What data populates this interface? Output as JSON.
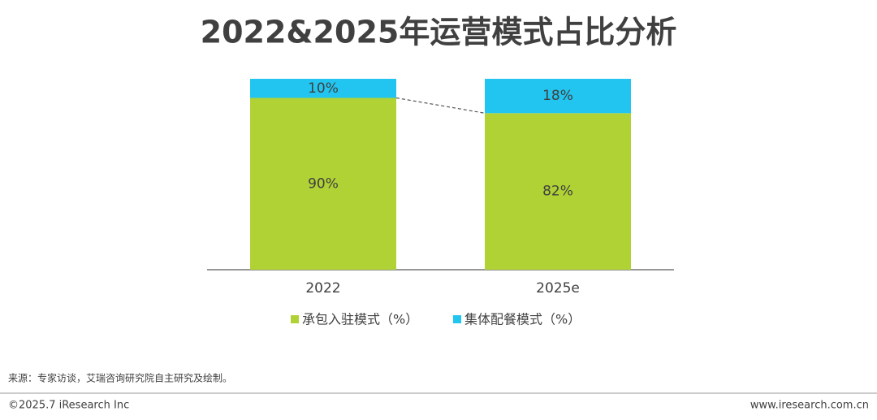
{
  "chart_data": {
    "type": "stacked-bar",
    "title": "2022&2025年运营模式占比分析",
    "categories": [
      "2022",
      "2025e"
    ],
    "series": [
      {
        "name": "承包入驻模式（%）",
        "color": "#b0d235",
        "values": [
          90,
          82
        ],
        "value_labels": [
          "90%",
          "82%"
        ]
      },
      {
        "name": "集体配餐模式（%）",
        "color": "#22c5ef",
        "values": [
          10,
          18
        ],
        "value_labels": [
          "10%",
          "18%"
        ]
      }
    ],
    "ylim": [
      0,
      100
    ]
  },
  "source": "来源：专家访谈，艾瑞咨询研究院自主研究及绘制。",
  "footer": {
    "left": "©2025.7 iResearch Inc",
    "right": "www.iresearch.com.cn"
  }
}
